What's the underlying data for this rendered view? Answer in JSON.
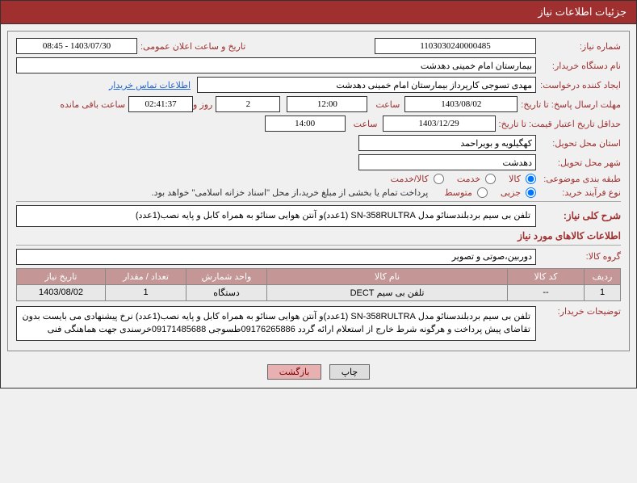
{
  "header": {
    "title": "جزئیات اطلاعات نیاز"
  },
  "fields": {
    "need_number_label": "شماره نیاز:",
    "need_number": "1103030240000485",
    "announce_label": "تاریخ و ساعت اعلان عمومی:",
    "announce_value": "1403/07/30 - 08:45",
    "buyer_org_label": "نام دستگاه خریدار:",
    "buyer_org": "بیمارستان امام خمینی دهدشت",
    "requester_label": "ایجاد کننده درخواست:",
    "requester": "مهدی تسوجی کارپرداز بیمارستان امام خمینی دهدشت",
    "contact_link": "اطلاعات تماس خریدار",
    "deadline_label": "مهلت ارسال پاسخ: تا تاریخ:",
    "deadline_date": "1403/08/02",
    "time_label": "ساعت",
    "deadline_time": "12:00",
    "remaining_days": "2",
    "remaining_days_label": "روز و",
    "remaining_time": "02:41:37",
    "remaining_suffix": "ساعت باقی مانده",
    "validity_label": "حداقل تاریخ اعتبار قیمت: تا تاریخ:",
    "validity_date": "1403/12/29",
    "validity_time": "14:00",
    "province_label": "استان محل تحویل:",
    "province": "کهگیلویه و بویراحمد",
    "city_label": "شهر محل تحویل:",
    "city": "دهدشت",
    "category_label": "طبقه بندی موضوعی:",
    "cat_goods": "کالا",
    "cat_service": "خدمت",
    "cat_both": "کالا/خدمت",
    "process_label": "نوع فرآیند خرید:",
    "proc_small": "جزیی",
    "proc_medium": "متوسط",
    "process_note": "پرداخت تمام یا بخشی از مبلغ خرید،از محل \"اسناد خزانه اسلامی\" خواهد بود.",
    "desc_label": "شرح کلی نیاز:",
    "desc_value": "تلفن بی سیم بردبلندسنائو مدل SN-358RULTRA (1عدد)و آنتن هوایی سنائو به همراه کابل و پایه نصب(1عدد)",
    "items_title": "اطلاعات کالاهای مورد نیاز",
    "group_label": "گروه کالا:",
    "group_value": "دوربین،صوتی و تصویر",
    "buyer_notes_label": "توضیحات خریدار:",
    "buyer_notes": "تلفن بی سیم بردبلندسنائو مدل SN-358RULTRA (1عدد)و آنتن هوایی سنائو به همراه کابل و پایه نصب(1عدد) نرخ پیشنهادی می بایست بدون تقاضای پیش پرداخت و هرگونه شرط خارج از استعلام ارائه گردد 09176265886طسوجی 09171485688خرسندی جهت هماهنگی فنی"
  },
  "table": {
    "headers": {
      "row": "ردیف",
      "code": "کد کالا",
      "name": "نام کالا",
      "unit": "واحد شمارش",
      "qty": "تعداد / مقدار",
      "date": "تاریخ نیاز"
    },
    "rows": [
      {
        "row": "1",
        "code": "--",
        "name": "تلفن بی سیم DECT",
        "unit": "دستگاه",
        "qty": "1",
        "date": "1403/08/02"
      }
    ]
  },
  "buttons": {
    "print": "چاپ",
    "back": "بازگشت"
  },
  "colors": {
    "header_bg": "#a03030",
    "label": "#a03030"
  }
}
